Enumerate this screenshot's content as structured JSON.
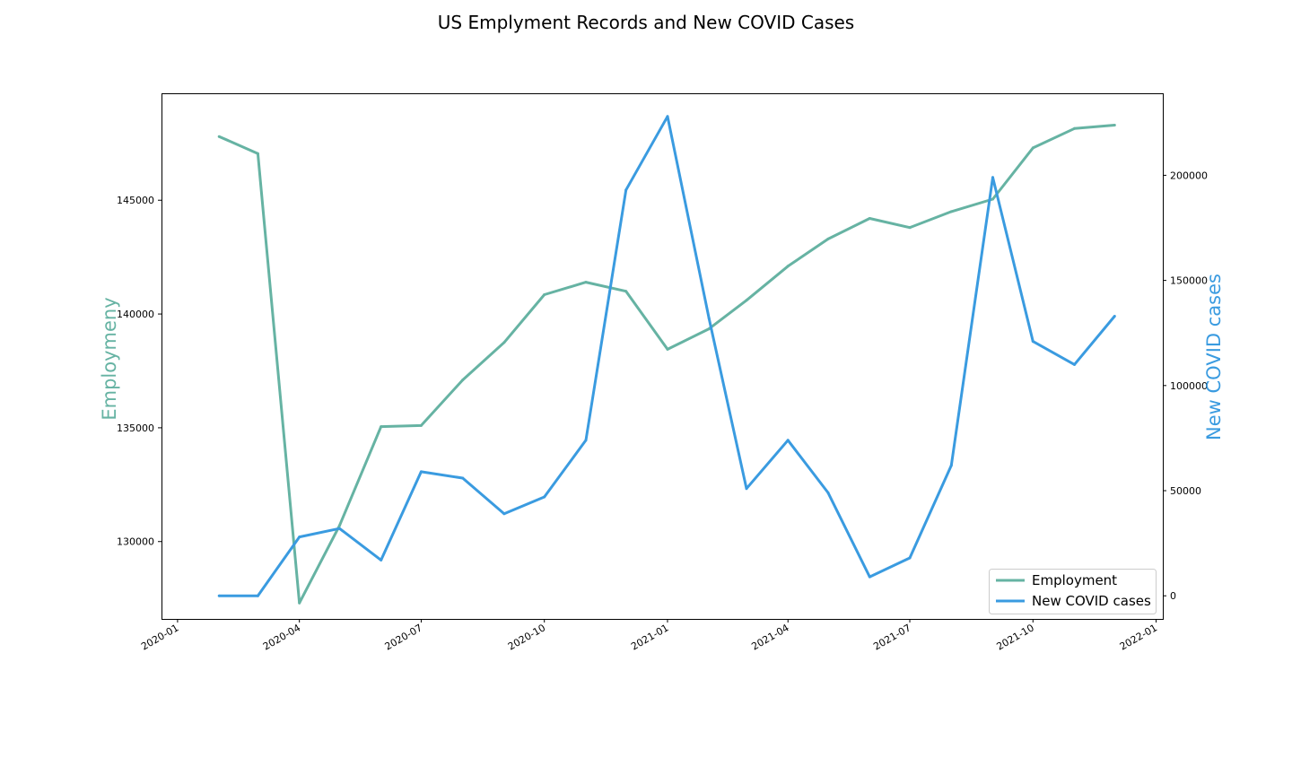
{
  "chart_data": {
    "type": "line",
    "title": "US Emplyment Records and New COVID Cases",
    "xlabel": "",
    "x": [
      "2020-02",
      "2020-03",
      "2020-04",
      "2020-05",
      "2020-06",
      "2020-07",
      "2020-08",
      "2020-09",
      "2020-10",
      "2020-11",
      "2020-12",
      "2021-01",
      "2021-02",
      "2021-03",
      "2021-04",
      "2021-05",
      "2021-06",
      "2021-07",
      "2021-08",
      "2021-09",
      "2021-10",
      "2021-11",
      "2021-12"
    ],
    "x_ticks": [
      "2020-01",
      "2020-04",
      "2020-07",
      "2020-10",
      "2021-01",
      "2021-04",
      "2021-07",
      "2021-10",
      "2022-01"
    ],
    "x_range": [
      "2019-12-20",
      "2022-01-06"
    ],
    "left_axis": {
      "label": "Employmeny",
      "color": "#66b3a3",
      "ylim": [
        126600,
        149700
      ],
      "ticks": [
        130000,
        135000,
        140000,
        145000
      ]
    },
    "right_axis": {
      "label": "New COVID cases",
      "color": "#3a9be0",
      "ylim": [
        -11000,
        239000
      ],
      "ticks": [
        0,
        50000,
        100000,
        150000,
        200000
      ]
    },
    "series": [
      {
        "name": "Employment",
        "axis": "left",
        "color": "#66b3a3",
        "values": [
          147800,
          147050,
          127300,
          130700,
          135050,
          135100,
          137100,
          138750,
          140850,
          141400,
          141000,
          138450,
          139350,
          140600,
          142100,
          143300,
          144200,
          143800,
          144500,
          145050,
          147300,
          148150,
          148300
        ]
      },
      {
        "name": "New COVID cases",
        "axis": "right",
        "color": "#3a9be0",
        "values": [
          0,
          0,
          28000,
          32000,
          17000,
          59000,
          56000,
          39000,
          47000,
          74000,
          193000,
          228000,
          132000,
          51000,
          74000,
          49000,
          9000,
          18000,
          62000,
          199000,
          121000,
          110000,
          133000
        ]
      }
    ],
    "legend": {
      "position": "bottom-right",
      "entries": [
        "Employment",
        "New COVID cases"
      ]
    },
    "grid": false
  }
}
